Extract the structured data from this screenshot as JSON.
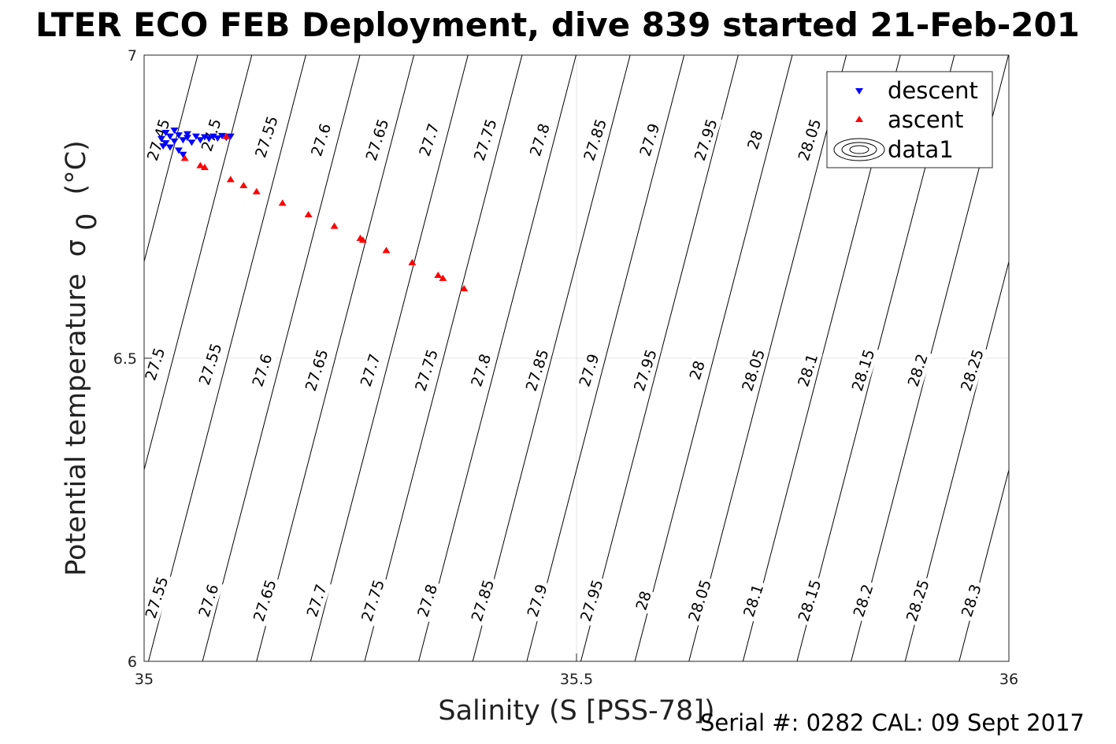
{
  "chart_data": {
    "type": "scatter",
    "title": "LTER ECO FEB Deployment, dive 839 started 21-Feb-201",
    "xlabel": "Salinity (S [PSS-78])",
    "ylabel_main": "Potential temperature",
    "ylabel_symbol": "σ",
    "ylabel_subscript": "0",
    "ylabel_unit": "(°C)",
    "xlim": [
      35,
      36
    ],
    "ylim": [
      6,
      7
    ],
    "xticks": [
      35,
      35.5,
      36
    ],
    "yticks": [
      6,
      6.5,
      7
    ],
    "xtick_labels": [
      "35",
      "35.5",
      "36"
    ],
    "ytick_labels": [
      "6",
      "6.5",
      "7"
    ],
    "grid": true,
    "legend": {
      "location": "top-right",
      "entries": [
        {
          "label": "descent",
          "marker": "triangle-down",
          "color": "#0000ff"
        },
        {
          "label": "ascent",
          "marker": "triangle-up",
          "color": "#ff0000"
        },
        {
          "label": "data1",
          "marker": "contour",
          "color": "#000000"
        }
      ]
    },
    "series": [
      {
        "name": "descent",
        "color": "#0000ff",
        "points": [
          [
            35.02,
            6.862
          ],
          [
            35.025,
            6.855
          ],
          [
            35.03,
            6.866
          ],
          [
            35.035,
            6.858
          ],
          [
            35.04,
            6.868
          ],
          [
            35.045,
            6.86
          ],
          [
            35.05,
            6.864
          ],
          [
            35.055,
            6.856
          ],
          [
            35.06,
            6.866
          ],
          [
            35.065,
            6.86
          ],
          [
            35.07,
            6.865
          ],
          [
            35.075,
            6.862
          ],
          [
            35.08,
            6.866
          ],
          [
            35.085,
            6.863
          ],
          [
            35.09,
            6.867
          ],
          [
            35.095,
            6.864
          ],
          [
            35.1,
            6.866
          ],
          [
            35.03,
            6.848
          ],
          [
            35.04,
            6.843
          ],
          [
            35.045,
            6.836
          ],
          [
            35.025,
            6.872
          ],
          [
            35.035,
            6.876
          ],
          [
            35.05,
            6.87
          ],
          [
            35.022,
            6.85
          ]
        ]
      },
      {
        "name": "ascent",
        "color": "#ff0000",
        "points": [
          [
            35.047,
            6.83
          ],
          [
            35.07,
            6.815
          ],
          [
            35.1,
            6.795
          ],
          [
            35.13,
            6.775
          ],
          [
            35.16,
            6.756
          ],
          [
            35.19,
            6.737
          ],
          [
            35.22,
            6.718
          ],
          [
            35.25,
            6.698
          ],
          [
            35.28,
            6.678
          ],
          [
            35.31,
            6.658
          ],
          [
            35.34,
            6.637
          ],
          [
            35.37,
            6.615
          ],
          [
            35.3455,
            6.632
          ],
          [
            35.253,
            6.695
          ],
          [
            35.115,
            6.785
          ],
          [
            35.065,
            6.818
          ],
          [
            35.095,
            6.866
          ]
        ]
      }
    ],
    "contours": {
      "levels": [
        27.45,
        27.5,
        27.55,
        27.6,
        27.65,
        27.7,
        27.75,
        27.8,
        27.85,
        27.9,
        27.95,
        28,
        28.05,
        28.1,
        28.15,
        28.2,
        28.25,
        28.3
      ],
      "labels": [
        {
          "text": "27.45",
          "s": 35.017,
          "t": 6.86
        },
        {
          "text": "27.5",
          "s": 35.078,
          "t": 6.868
        },
        {
          "text": "27.55",
          "s": 35.142,
          "t": 6.865
        },
        {
          "text": "27.6",
          "s": 35.205,
          "t": 6.86
        },
        {
          "text": "27.65",
          "s": 35.27,
          "t": 6.86
        },
        {
          "text": "27.7",
          "s": 35.33,
          "t": 6.86
        },
        {
          "text": "27.75",
          "s": 35.395,
          "t": 6.86
        },
        {
          "text": "27.8",
          "s": 35.458,
          "t": 6.86
        },
        {
          "text": "27.85",
          "s": 35.522,
          "t": 6.86
        },
        {
          "text": "27.9",
          "s": 35.585,
          "t": 6.86
        },
        {
          "text": "27.95",
          "s": 35.65,
          "t": 6.86
        },
        {
          "text": "28",
          "s": 35.707,
          "t": 6.86
        },
        {
          "text": "28.05",
          "s": 35.77,
          "t": 6.86
        },
        {
          "text": "27.5",
          "s": 35.013,
          "t": 6.49
        },
        {
          "text": "27.55",
          "s": 35.077,
          "t": 6.49
        },
        {
          "text": "27.6",
          "s": 35.137,
          "t": 6.48
        },
        {
          "text": "27.65",
          "s": 35.2,
          "t": 6.48
        },
        {
          "text": "27.7",
          "s": 35.262,
          "t": 6.48
        },
        {
          "text": "27.75",
          "s": 35.327,
          "t": 6.48
        },
        {
          "text": "27.8",
          "s": 35.39,
          "t": 6.48
        },
        {
          "text": "27.85",
          "s": 35.455,
          "t": 6.48
        },
        {
          "text": "27.9",
          "s": 35.515,
          "t": 6.48
        },
        {
          "text": "27.95",
          "s": 35.58,
          "t": 6.48
        },
        {
          "text": "28",
          "s": 35.64,
          "t": 6.48
        },
        {
          "text": "28.05",
          "s": 35.705,
          "t": 6.48
        },
        {
          "text": "28.1",
          "s": 35.768,
          "t": 6.48
        },
        {
          "text": "28.15",
          "s": 35.832,
          "t": 6.48
        },
        {
          "text": "28.2",
          "s": 35.895,
          "t": 6.48
        },
        {
          "text": "28.25",
          "s": 35.958,
          "t": 6.48
        },
        {
          "text": "27.55",
          "s": 35.015,
          "t": 6.105
        },
        {
          "text": "27.6",
          "s": 35.075,
          "t": 6.1
        },
        {
          "text": "27.65",
          "s": 35.14,
          "t": 6.1
        },
        {
          "text": "27.7",
          "s": 35.2,
          "t": 6.1
        },
        {
          "text": "27.75",
          "s": 35.265,
          "t": 6.1
        },
        {
          "text": "27.8",
          "s": 35.328,
          "t": 6.1
        },
        {
          "text": "27.85",
          "s": 35.392,
          "t": 6.1
        },
        {
          "text": "27.9",
          "s": 35.455,
          "t": 6.1
        },
        {
          "text": "27.95",
          "s": 35.518,
          "t": 6.1
        },
        {
          "text": "28",
          "s": 35.578,
          "t": 6.1
        },
        {
          "text": "28.05",
          "s": 35.643,
          "t": 6.1
        },
        {
          "text": "28.1",
          "s": 35.705,
          "t": 6.1
        },
        {
          "text": "28.15",
          "s": 35.77,
          "t": 6.1
        },
        {
          "text": "28.2",
          "s": 35.832,
          "t": 6.1
        },
        {
          "text": "28.25",
          "s": 35.895,
          "t": 6.1
        },
        {
          "text": "28.3",
          "s": 35.957,
          "t": 6.1
        }
      ]
    }
  },
  "footer": {
    "serial_text": "Serial #: 0282  CAL: 09 Sept 2017"
  }
}
